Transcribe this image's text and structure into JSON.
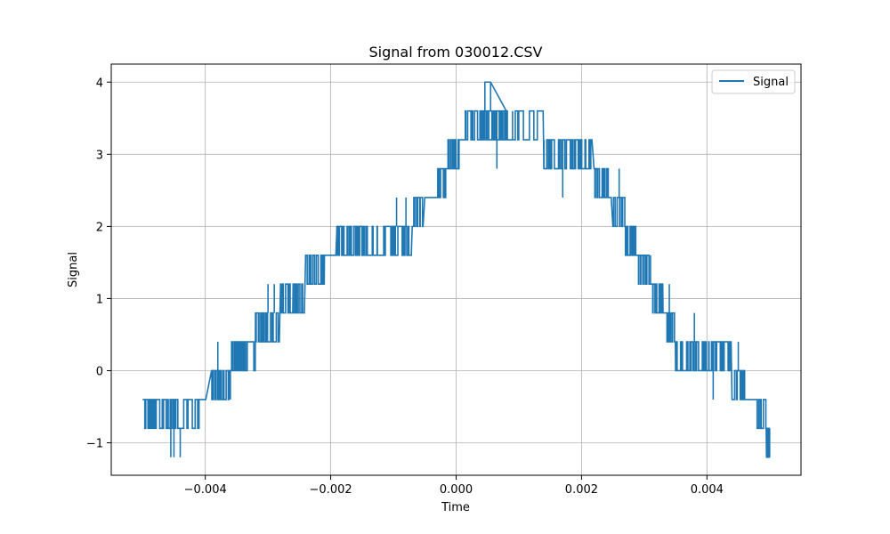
{
  "chart_data": {
    "type": "line",
    "title": "Signal from 030012.CSV",
    "xlabel": "Time",
    "ylabel": "Signal",
    "xlim": [
      -0.0055,
      0.0055
    ],
    "ylim": [
      -1.45,
      4.25
    ],
    "xticks": [
      -0.004,
      -0.002,
      0.0,
      0.002,
      0.004
    ],
    "xtick_labels": [
      "−0.004",
      "−0.002",
      "0.000",
      "0.002",
      "0.004"
    ],
    "yticks": [
      -1,
      0,
      1,
      2,
      3,
      4
    ],
    "ytick_labels": [
      "−1",
      "0",
      "1",
      "2",
      "3",
      "4"
    ],
    "grid": true,
    "legend_position": "top-right",
    "series": [
      {
        "name": "Signal",
        "color": "#1f77b4",
        "levels": [
          {
            "x0": -0.005,
            "x1": -0.0048,
            "base": -0.4,
            "alt": -0.8,
            "n": 10
          },
          {
            "x0": -0.0048,
            "x1": -0.0041,
            "base": -0.4,
            "alt": -0.8,
            "n": 30
          },
          {
            "x0": -0.0041,
            "x1": -0.0039,
            "base": -0.4,
            "alt": -0.4,
            "n": 1
          },
          {
            "x0": -0.0039,
            "x1": -0.0037,
            "base": -0.4,
            "alt": 0.0,
            "n": 14
          },
          {
            "x0": -0.0037,
            "x1": -0.0036,
            "base": 0.0,
            "alt": -0.4,
            "n": 6
          },
          {
            "x0": -0.0036,
            "x1": -0.0034,
            "base": 0.0,
            "alt": 0.4,
            "n": 16
          },
          {
            "x0": -0.0034,
            "x1": -0.0032,
            "base": 0.4,
            "alt": 0.0,
            "n": 8
          },
          {
            "x0": -0.0032,
            "x1": -0.0028,
            "base": 0.8,
            "alt": 0.4,
            "n": 22
          },
          {
            "x0": -0.0028,
            "x1": -0.0026,
            "base": 0.8,
            "alt": 1.2,
            "n": 12
          },
          {
            "x0": -0.0026,
            "x1": -0.0024,
            "base": 1.2,
            "alt": 0.8,
            "n": 10
          },
          {
            "x0": -0.0024,
            "x1": -0.0021,
            "base": 1.2,
            "alt": 1.6,
            "n": 14
          },
          {
            "x0": -0.0021,
            "x1": -0.0019,
            "base": 1.6,
            "alt": 1.6,
            "n": 1
          },
          {
            "x0": -0.0019,
            "x1": -0.0017,
            "base": 1.6,
            "alt": 2.0,
            "n": 10
          },
          {
            "x0": -0.0017,
            "x1": -0.0007,
            "base": 1.6,
            "alt": 2.0,
            "n": 40
          },
          {
            "x0": -0.0007,
            "x1": -0.0005,
            "base": 2.0,
            "alt": 2.4,
            "n": 10
          },
          {
            "x0": -0.0005,
            "x1": -0.0003,
            "base": 2.4,
            "alt": 2.4,
            "n": 1
          },
          {
            "x0": -0.0003,
            "x1": -0.00015,
            "base": 2.4,
            "alt": 2.8,
            "n": 8
          },
          {
            "x0": -0.00015,
            "x1": 0.0,
            "base": 2.8,
            "alt": 3.2,
            "n": 10
          },
          {
            "x0": 0.0,
            "x1": 0.00012,
            "base": 3.2,
            "alt": 2.8,
            "n": 8
          },
          {
            "x0": 0.00012,
            "x1": 0.0008,
            "base": 3.2,
            "alt": 3.6,
            "n": 30
          },
          {
            "x0": 0.00045,
            "x1": 0.00055,
            "base": 3.6,
            "alt": 4.0,
            "n": 4
          },
          {
            "x0": 0.0008,
            "x1": 0.0014,
            "base": 3.2,
            "alt": 3.6,
            "n": 10
          },
          {
            "x0": 0.0014,
            "x1": 0.0022,
            "base": 2.8,
            "alt": 3.2,
            "n": 30
          },
          {
            "x0": 0.0022,
            "x1": 0.0025,
            "base": 2.8,
            "alt": 2.4,
            "n": 16
          },
          {
            "x0": 0.0025,
            "x1": 0.0027,
            "base": 2.4,
            "alt": 2.0,
            "n": 10
          },
          {
            "x0": 0.0027,
            "x1": 0.0029,
            "base": 2.0,
            "alt": 1.6,
            "n": 10
          },
          {
            "x0": 0.0029,
            "x1": 0.0031,
            "base": 1.6,
            "alt": 1.2,
            "n": 10
          },
          {
            "x0": 0.0031,
            "x1": 0.0033,
            "base": 1.2,
            "alt": 0.8,
            "n": 12
          },
          {
            "x0": 0.0033,
            "x1": 0.0035,
            "base": 0.8,
            "alt": 0.4,
            "n": 14
          },
          {
            "x0": 0.0035,
            "x1": 0.0039,
            "base": 0.4,
            "alt": 0.0,
            "n": 22
          },
          {
            "x0": 0.0039,
            "x1": 0.0044,
            "base": 0.0,
            "alt": 0.4,
            "n": 20
          },
          {
            "x0": 0.0044,
            "x1": 0.0046,
            "base": 0.0,
            "alt": -0.4,
            "n": 10
          },
          {
            "x0": 0.0046,
            "x1": 0.0048,
            "base": -0.4,
            "alt": -0.4,
            "n": 1
          },
          {
            "x0": 0.0048,
            "x1": 0.00495,
            "base": -0.4,
            "alt": -0.8,
            "n": 6
          },
          {
            "x0": 0.00495,
            "x1": 0.005,
            "base": -1.2,
            "alt": -0.8,
            "n": 4
          }
        ],
        "spikes": [
          {
            "x": -0.00455,
            "y": -1.2
          },
          {
            "x": -0.0044,
            "y": -1.2
          },
          {
            "x": -0.0045,
            "y": -1.2
          },
          {
            "x": -0.0038,
            "y": 0.4
          },
          {
            "x": -0.003,
            "y": 1.2
          },
          {
            "x": -0.0029,
            "y": 1.2
          },
          {
            "x": -0.0022,
            "y": 1.6
          },
          {
            "x": -0.0019,
            "y": 2.0
          },
          {
            "x": -0.00095,
            "y": 2.4
          },
          {
            "x": -0.0008,
            "y": 2.4
          },
          {
            "x": 0.00055,
            "y": 4.0
          },
          {
            "x": 0.00045,
            "y": 3.6
          },
          {
            "x": 0.00065,
            "y": 3.2
          },
          {
            "x": 0.0009,
            "y": 3.6
          },
          {
            "x": 0.0017,
            "y": 2.8
          },
          {
            "x": 0.0014,
            "y": 3.2
          },
          {
            "x": 0.0026,
            "y": 2.8
          },
          {
            "x": 0.0031,
            "y": 1.6
          },
          {
            "x": 0.0034,
            "y": 1.2
          },
          {
            "x": 0.0038,
            "y": 0.8
          },
          {
            "x": 0.0041,
            "y": -0.4
          },
          {
            "x": 0.0045,
            "y": 0.4
          },
          {
            "x": 0.0046,
            "y": -0.4
          },
          {
            "x": 0.00495,
            "y": -1.2
          },
          {
            "x": 0.005,
            "y": -1.2
          }
        ]
      }
    ]
  }
}
